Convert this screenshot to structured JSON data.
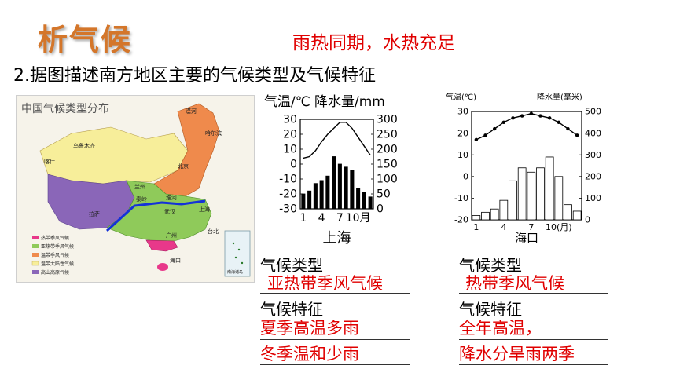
{
  "header": {
    "title": "析气候",
    "subtitle": "雨热同期，水热充足",
    "question": "2.据图描述南方地区主要的气候类型及气候特征"
  },
  "map": {
    "title": "中国气候类型分布",
    "legend": [
      "热带季风气候",
      "亚热带季风气候",
      "温带季风气候",
      "温带大陆性气候",
      "高山高原气候"
    ],
    "legend_colors": [
      "#e8388a",
      "#8fca5a",
      "#ef8a4c",
      "#f7ee9a",
      "#8a66b8"
    ],
    "places": [
      "漠河",
      "哈尔滨",
      "乌鲁木齐",
      "喀什",
      "北京",
      "兰州",
      "秦岭",
      "淮河",
      "拉萨",
      "武汉",
      "上海",
      "广州",
      "台北",
      "海口"
    ],
    "inset": "南海诸岛"
  },
  "chart_data": [
    {
      "type": "bar",
      "title": "上海",
      "ylabel_left": "气温/℃",
      "ylabel_right": "降水量/mm",
      "x_ticks": [
        "1",
        "4",
        "7",
        "10月"
      ],
      "temperature_ticks": [
        "30",
        "20",
        "10",
        "0",
        "-10",
        "-20",
        "-30"
      ],
      "precip_ticks": [
        "300",
        "250",
        "200",
        "150",
        "100",
        "50",
        "0"
      ],
      "ylim_temperature": [
        -30,
        30
      ],
      "ylim_precip": [
        0,
        300
      ],
      "months": [
        1,
        2,
        3,
        4,
        5,
        6,
        7,
        8,
        9,
        10,
        11,
        12
      ],
      "temperature": [
        4,
        5,
        9,
        15,
        20,
        24,
        28,
        28,
        24,
        18,
        12,
        6
      ],
      "precipitation": [
        50,
        60,
        85,
        95,
        110,
        175,
        150,
        140,
        130,
        70,
        55,
        40
      ],
      "line_color": "#000000",
      "bar_color": "#000000"
    },
    {
      "type": "bar",
      "title": "海口",
      "ylabel_left": "气温(℃)",
      "ylabel_right": "降水量(毫米)",
      "x_ticks": [
        "1",
        "4",
        "7",
        "10(月)"
      ],
      "temperature_ticks": [
        "30",
        "20",
        "10",
        "0",
        "-10",
        "-20"
      ],
      "precip_ticks": [
        "500",
        "400",
        "300",
        "200",
        "100",
        "0"
      ],
      "ylim_temperature": [
        -20,
        30
      ],
      "ylim_precip": [
        0,
        500
      ],
      "months": [
        1,
        2,
        3,
        4,
        5,
        6,
        7,
        8,
        9,
        10,
        11,
        12
      ],
      "temperature": [
        17,
        19,
        22,
        25,
        27,
        28,
        29,
        28,
        27,
        25,
        22,
        19
      ],
      "precipitation": [
        20,
        35,
        50,
        90,
        180,
        240,
        220,
        240,
        290,
        200,
        70,
        40
      ],
      "line_color": "#000000",
      "bar_color": "#ffffff"
    }
  ],
  "answers": {
    "shanghai": {
      "type_label": "气候类型",
      "type_value": "亚热带季风气候",
      "feature_label": "气候特征",
      "feature_line1": "夏季高温多雨",
      "feature_line2": "冬季温和少雨"
    },
    "haikou": {
      "type_label": "气候类型",
      "type_value": "热带季风气候",
      "feature_label": "气候特征",
      "feature_line1": "全年高温，",
      "feature_line2": "降水分旱雨两季"
    }
  }
}
